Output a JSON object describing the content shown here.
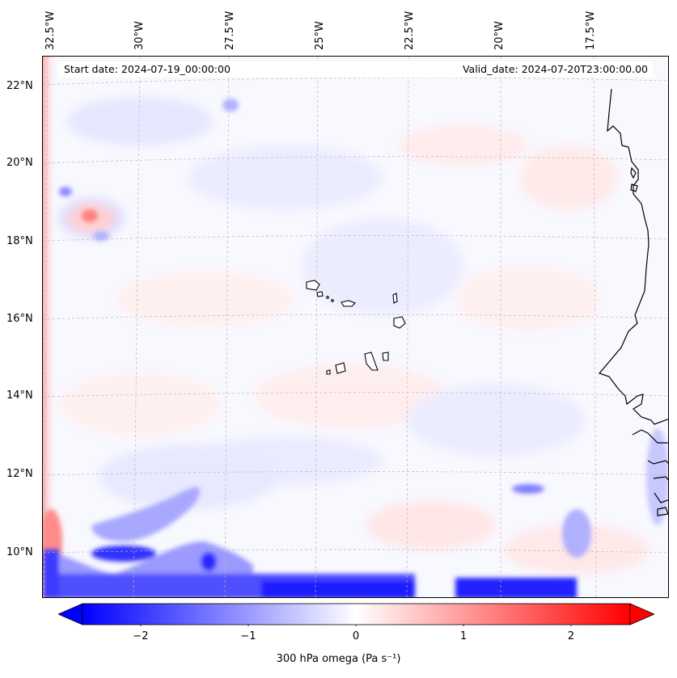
{
  "map": {
    "lon_labels": [
      "32.5°W",
      "30°W",
      "27.5°W",
      "25°W",
      "22.5°W",
      "20°W",
      "17.5°W"
    ],
    "lat_labels": [
      "22°N",
      "20°N",
      "18°N",
      "16°N",
      "14°N",
      "12°N",
      "10°N"
    ],
    "start_date": "Start date: 2024-07-19_00:00:00",
    "valid_date": "Valid_date: 2024-07-20T23:00:00.00",
    "variable": "300 hPa omega",
    "units": "(Pa s⁻¹)",
    "colorbar_ticks": [
      "−2",
      "−1",
      "0",
      "1",
      "2"
    ],
    "colorbar_range": [
      -2.75,
      2.75
    ],
    "colormap": "bwr",
    "colors": {
      "negative": "#0000ff",
      "zero": "#ffffff",
      "positive": "#ff0000",
      "coastline": "#000000",
      "gridline": "#b0b0b0"
    },
    "grid": "on (dashed)"
  }
}
